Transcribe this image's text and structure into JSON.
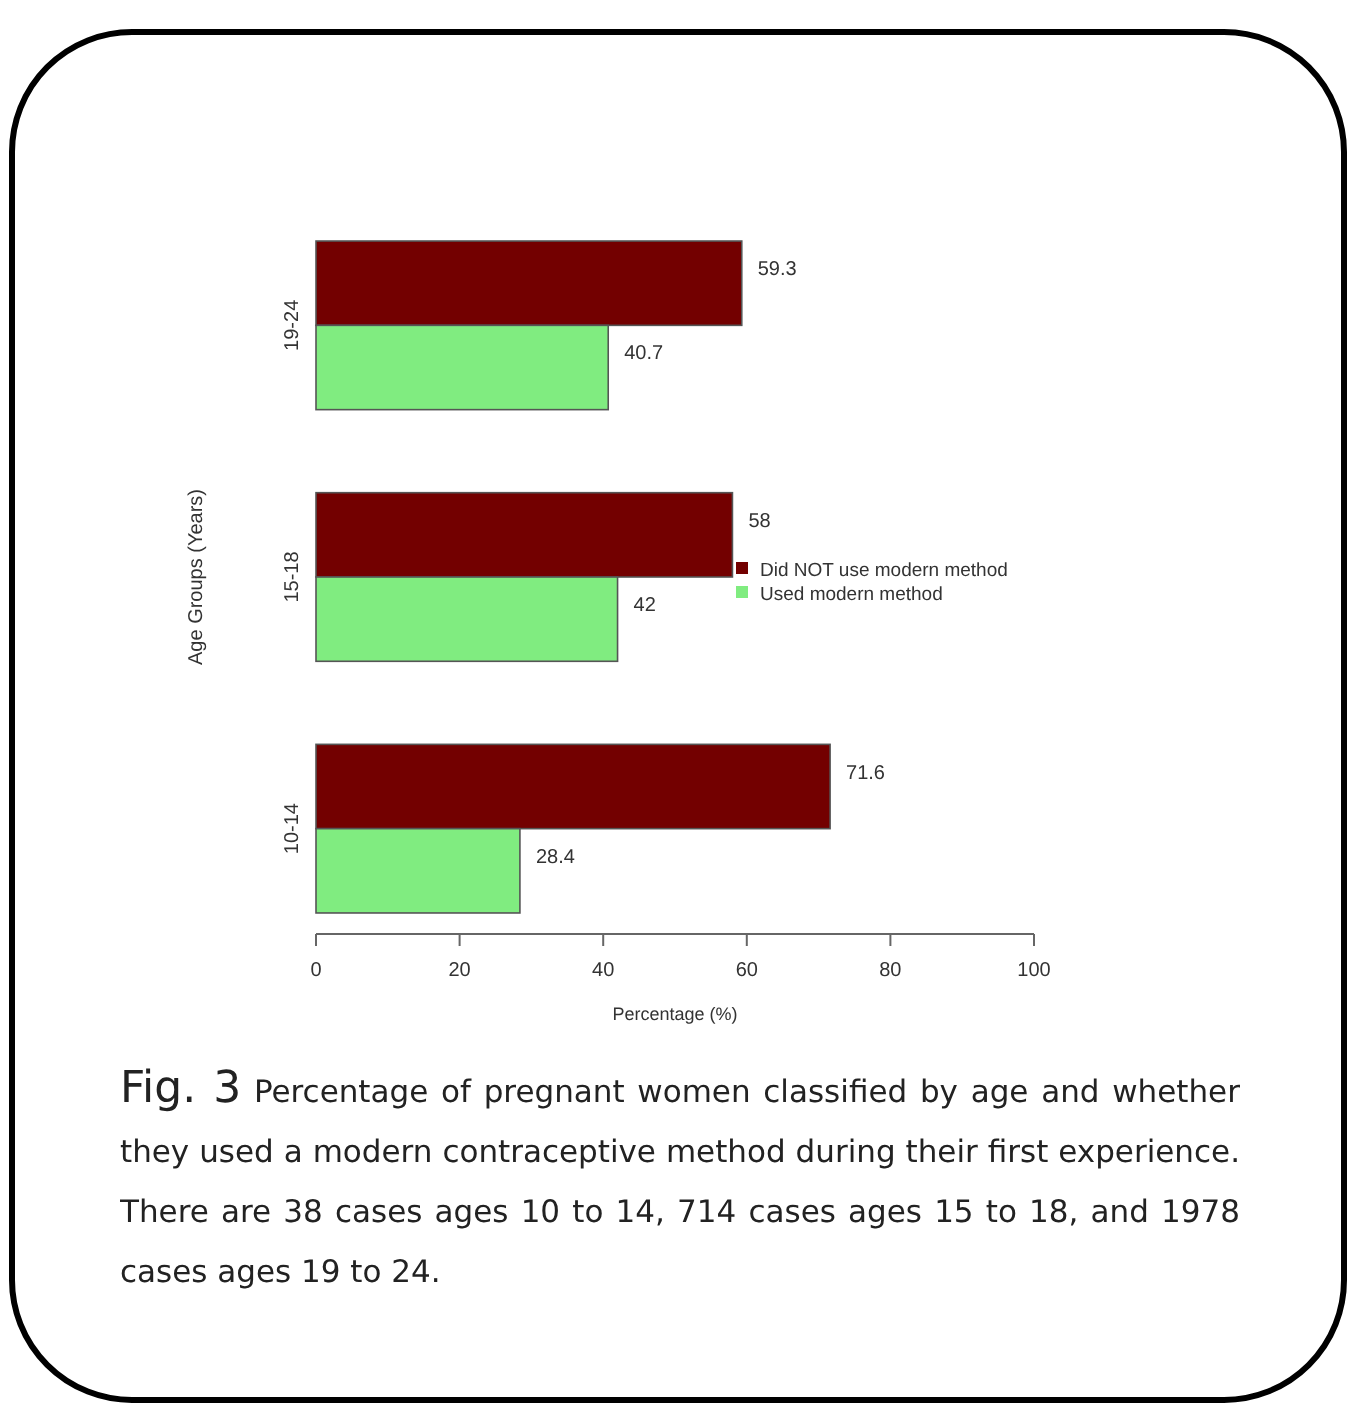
{
  "chart_data": {
    "type": "bar",
    "orientation": "horizontal",
    "title": "Fig. 3",
    "xlabel": "Percentage (%)",
    "ylabel": "Age Groups (Years)",
    "categories": [
      "19-24",
      "15-18",
      "10-14"
    ],
    "series": [
      {
        "name": "Did NOT use modern method",
        "color": "#730000",
        "values": [
          59.3,
          58,
          71.6
        ]
      },
      {
        "name": "Used modern method",
        "color": "#80ec80",
        "values": [
          40.7,
          42,
          28.4
        ]
      }
    ],
    "xlim": [
      0,
      100
    ],
    "xticks": [
      0,
      20,
      40,
      60,
      80,
      100
    ],
    "data_labels": true,
    "legend": "right",
    "grid": false,
    "annotations": [
      "Percentage of pregnant women classified by age and whether they used a modern contraceptive method during their first experience.  There are 38 cases ages 10 to 14, 714 cases ages 15 to 18, and 1978 cases ages 19 to 24."
    ]
  }
}
